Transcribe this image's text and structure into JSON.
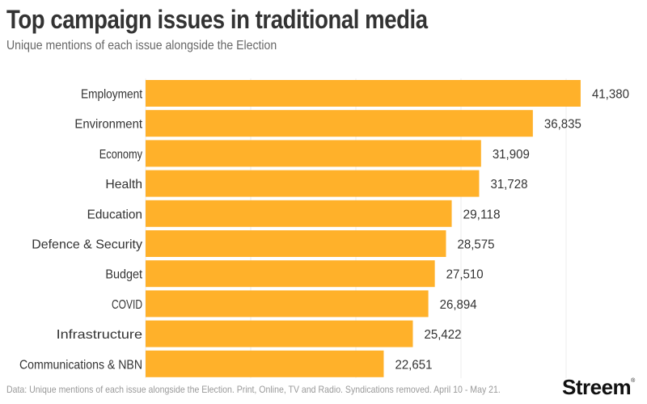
{
  "chart_data": {
    "type": "bar",
    "orientation": "horizontal",
    "title": "Top campaign issues in traditional media",
    "subtitle": "Unique mentions of each issue alongside the Election",
    "xlabel": "",
    "ylabel": "",
    "categories": [
      "Employment",
      "Environment",
      "Economy",
      "Health",
      "Education",
      "Defence & Security",
      "Budget",
      "COVID",
      "Infrastructure",
      "Communications & NBN"
    ],
    "values": [
      41380,
      36835,
      31909,
      31728,
      29118,
      28575,
      27510,
      26894,
      25422,
      22651
    ],
    "value_labels": [
      "41,380",
      "36,835",
      "31,909",
      "31,728",
      "29,118",
      "28,575",
      "27,510",
      "26,894",
      "25,422",
      "22,651"
    ],
    "xlim": [
      0,
      47000
    ],
    "gridlines_x": [
      0,
      10000,
      20000,
      30000,
      40000
    ],
    "grid": true,
    "bar_color": "#FFB12A",
    "footnote": "Data: Unique mentions of each issue alongside the Election. Print, Online, TV and Radio. Syndications removed. April 10 - May 21."
  },
  "branding": {
    "logo_text": "Streem",
    "logo_mark": "®"
  }
}
